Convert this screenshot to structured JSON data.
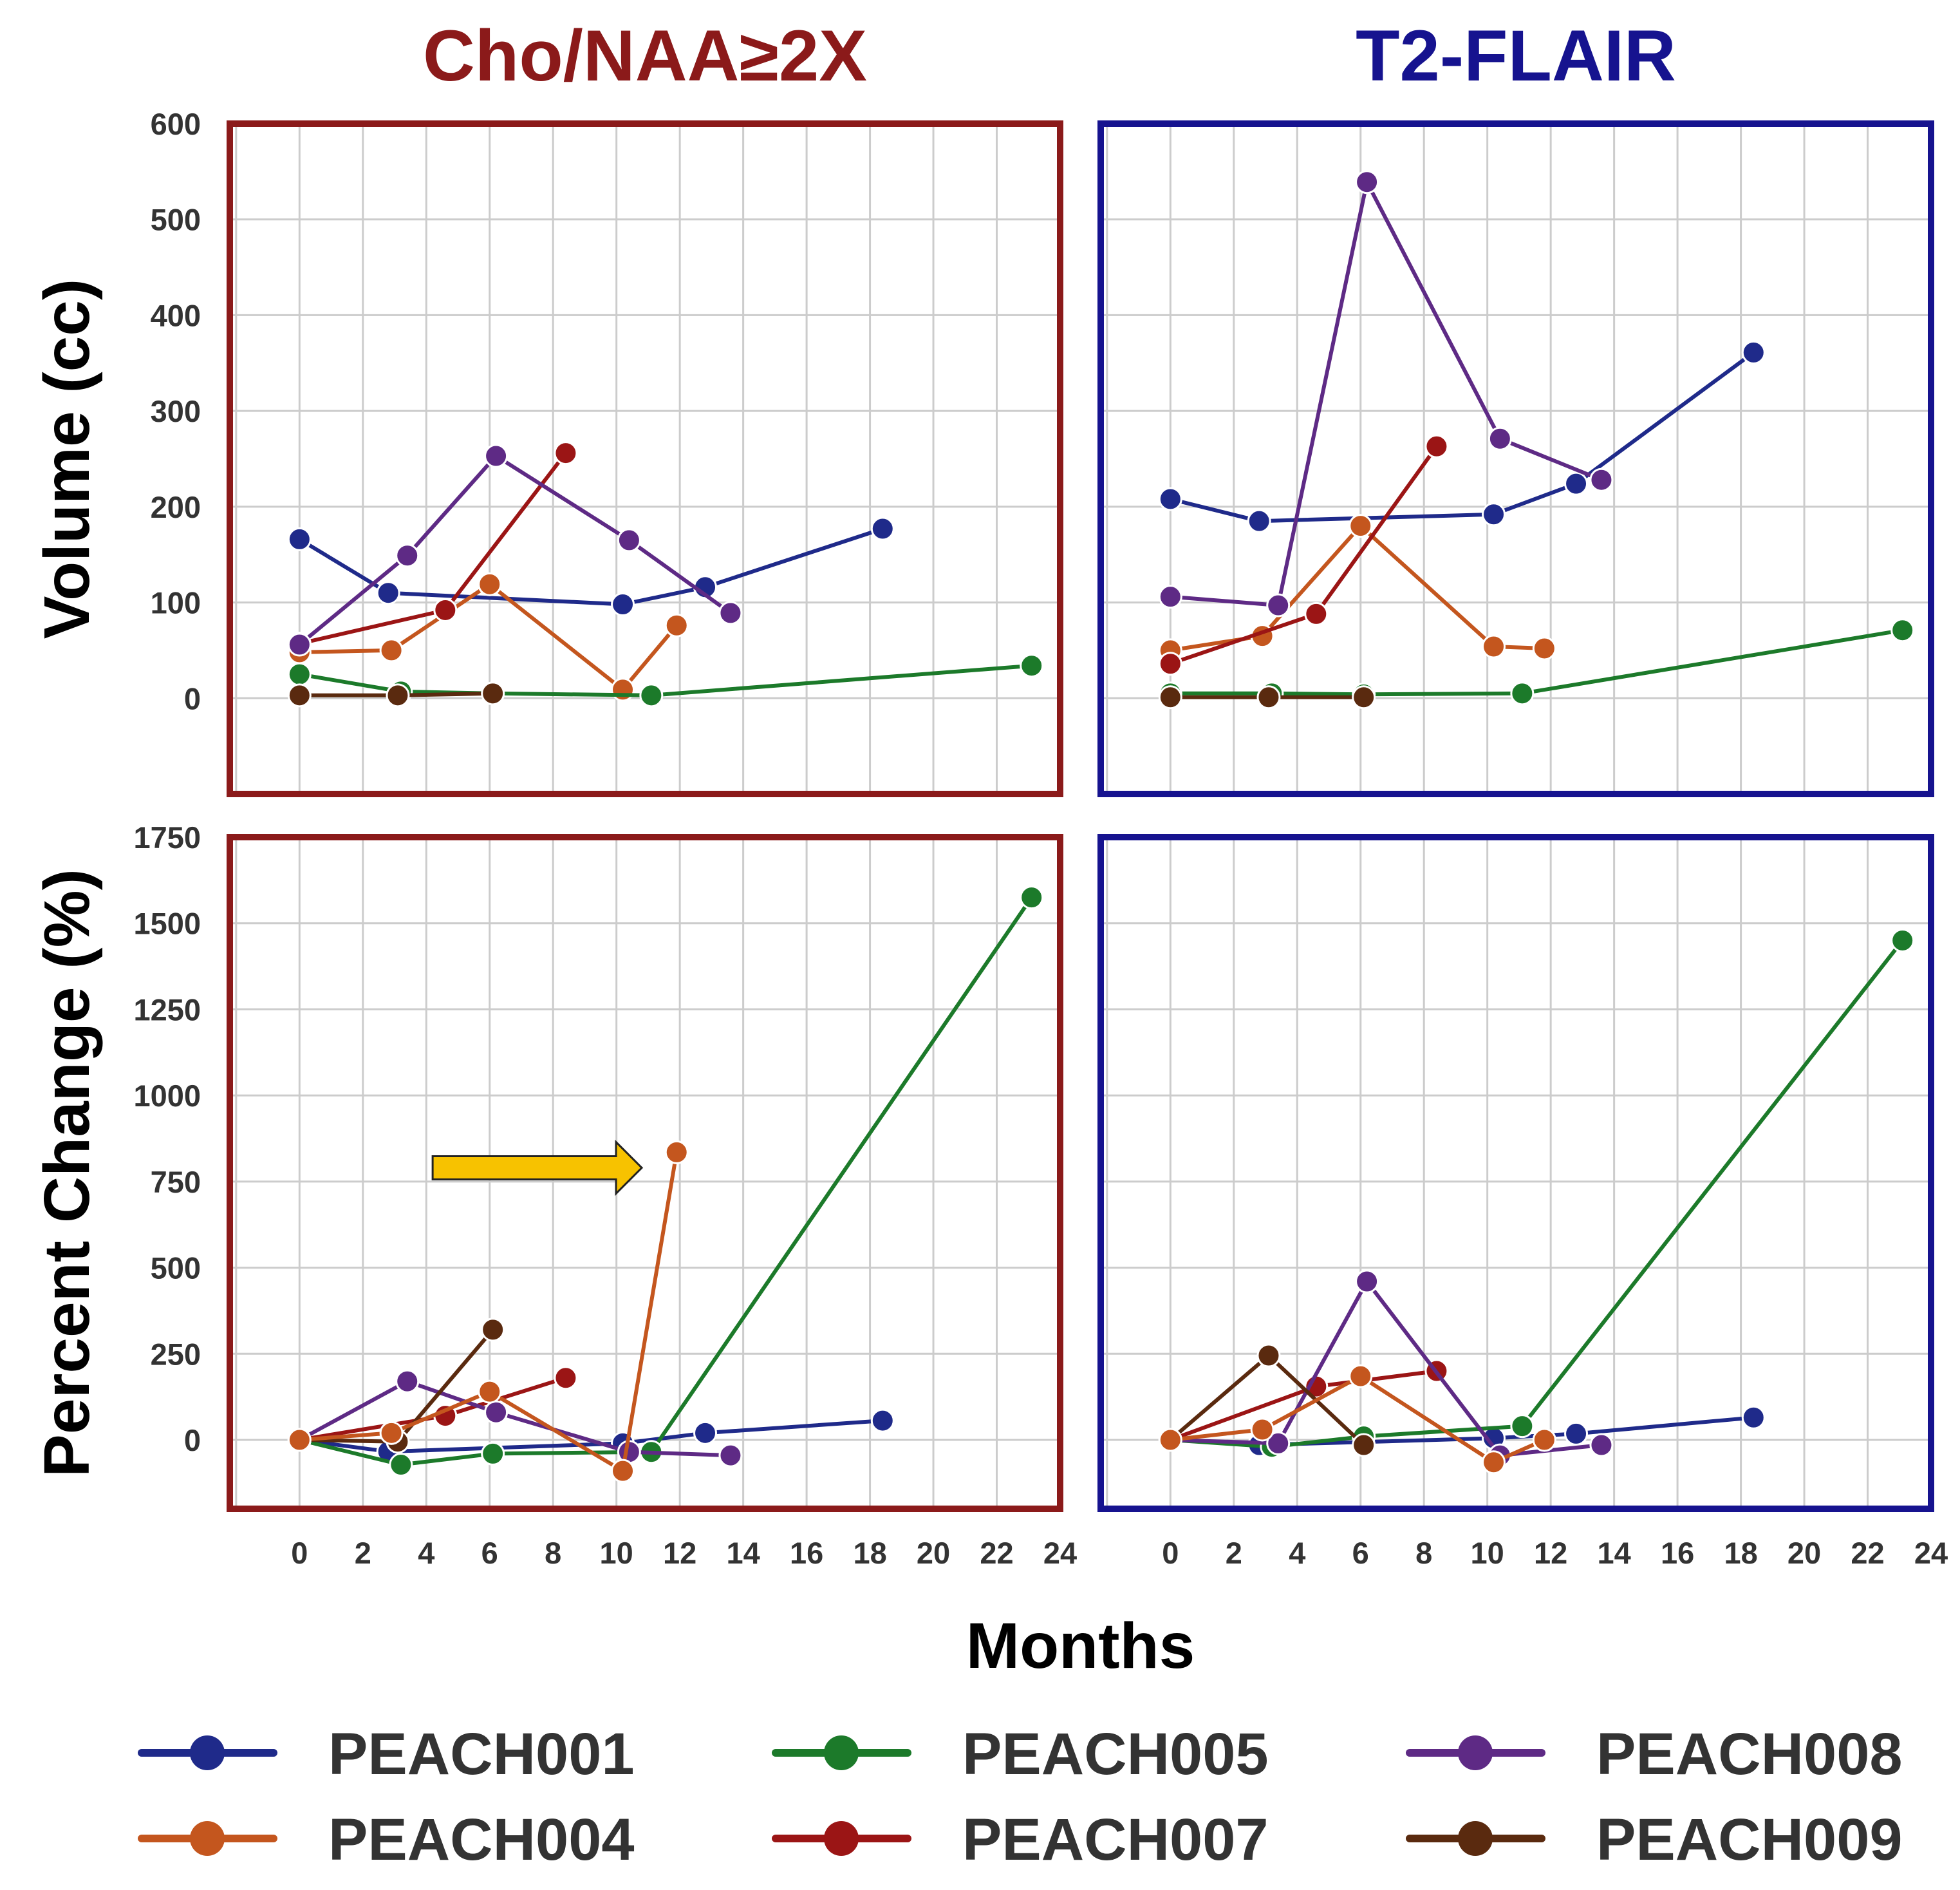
{
  "chart_data": {
    "type": "line",
    "figure": {
      "columns": [
        {
          "title": "Cho/NAA≥2X",
          "color": "#8b1a1a"
        },
        {
          "title": "T2-FLAIR",
          "color": "#16138f"
        }
      ],
      "xlabel": "Months",
      "x_ticks": [
        "0",
        "2",
        "4",
        "6",
        "8",
        "10",
        "12",
        "14",
        "16",
        "18",
        "20",
        "22",
        "24"
      ],
      "xlim": [
        -2.2,
        24
      ],
      "grid": true,
      "legend_placement": "bottom",
      "legend": [
        {
          "label": "PEACH001",
          "color": "#1f2a8a"
        },
        {
          "label": "PEACH005",
          "color": "#1c7a2a"
        },
        {
          "label": "PEACH008",
          "color": "#5e2a85"
        },
        {
          "label": "PEACH004",
          "color": "#c4561e"
        },
        {
          "label": "PEACH007",
          "color": "#9b1515"
        },
        {
          "label": "PEACH009",
          "color": "#5a2a0f"
        }
      ]
    },
    "panels": [
      {
        "id": "volume-cho",
        "ylabel": "Volume (cc)",
        "ylim": [
          -100,
          600
        ],
        "y_ticks": [
          "0",
          "100",
          "200",
          "300",
          "400",
          "500",
          "600"
        ],
        "y_tick_values": [
          0,
          100,
          200,
          300,
          400,
          500,
          600
        ],
        "series": [
          {
            "name": "PEACH001",
            "color": "#1f2a8a",
            "x": [
              0,
              2.8,
              10.2,
              12.8,
              18.4
            ],
            "y": [
              166,
              110,
              98,
              116,
              177
            ]
          },
          {
            "name": "PEACH004",
            "color": "#c4561e",
            "x": [
              0,
              2.9,
              6.0,
              10.2,
              11.9
            ],
            "y": [
              48,
              50,
              119,
              9,
              76
            ]
          },
          {
            "name": "PEACH005",
            "color": "#1c7a2a",
            "x": [
              0,
              3.2,
              6.1,
              11.1,
              23.1
            ],
            "y": [
              25,
              7,
              5,
              3,
              34
            ]
          },
          {
            "name": "PEACH007",
            "color": "#9b1515",
            "x": [
              0,
              4.6,
              8.4
            ],
            "y": [
              57,
              92,
              256
            ]
          },
          {
            "name": "PEACH008",
            "color": "#5e2a85",
            "x": [
              0,
              3.4,
              6.2,
              10.4,
              13.6
            ],
            "y": [
              56,
              149,
              253,
              165,
              89
            ]
          },
          {
            "name": "PEACH009",
            "color": "#5a2a0f",
            "x": [
              0,
              3.1,
              6.1
            ],
            "y": [
              3,
              3,
              5
            ]
          }
        ]
      },
      {
        "id": "volume-flair",
        "ylim": [
          -100,
          600
        ],
        "y_tick_values": [
          0,
          100,
          200,
          300,
          400,
          500,
          600
        ],
        "series": [
          {
            "name": "PEACH001",
            "color": "#1f2a8a",
            "x": [
              0,
              2.8,
              10.2,
              12.8,
              18.4
            ],
            "y": [
              208,
              185,
              192,
              224,
              361
            ]
          },
          {
            "name": "PEACH004",
            "color": "#c4561e",
            "x": [
              0,
              2.9,
              6.0,
              10.2,
              11.8
            ],
            "y": [
              50,
              65,
              180,
              54,
              52
            ]
          },
          {
            "name": "PEACH005",
            "color": "#1c7a2a",
            "x": [
              0,
              3.2,
              6.1,
              11.1,
              23.1
            ],
            "y": [
              5,
              5,
              4,
              5,
              71
            ]
          },
          {
            "name": "PEACH007",
            "color": "#9b1515",
            "x": [
              0,
              4.6,
              8.4
            ],
            "y": [
              36,
              88,
              263
            ]
          },
          {
            "name": "PEACH008",
            "color": "#5e2a85",
            "x": [
              0,
              3.4,
              6.2,
              10.4,
              13.6
            ],
            "y": [
              106,
              97,
              539,
              271,
              228
            ]
          },
          {
            "name": "PEACH009",
            "color": "#5a2a0f",
            "x": [
              0,
              3.1,
              6.1
            ],
            "y": [
              1,
              1,
              1
            ]
          }
        ]
      },
      {
        "id": "percent-cho",
        "ylabel": "Percent Change (%)",
        "ylim": [
          -200,
          1750
        ],
        "y_ticks": [
          "0",
          "250",
          "500",
          "750",
          "1000",
          "1250",
          "1500",
          "1750"
        ],
        "y_tick_values": [
          0,
          250,
          500,
          750,
          1000,
          1250,
          1500,
          1750
        ],
        "series": [
          {
            "name": "PEACH001",
            "color": "#1f2a8a",
            "x": [
              0,
              2.8,
              10.2,
              12.8,
              18.4
            ],
            "y": [
              0,
              -34,
              -10,
              20,
              56
            ]
          },
          {
            "name": "PEACH005",
            "color": "#1c7a2a",
            "x": [
              0,
              3.2,
              6.1,
              11.1,
              23.1
            ],
            "y": [
              0,
              -72,
              -40,
              -35,
              1575
            ]
          },
          {
            "name": "PEACH007",
            "color": "#9b1515",
            "x": [
              0,
              4.6,
              8.4
            ],
            "y": [
              0,
              70,
              180
            ]
          },
          {
            "name": "PEACH008",
            "color": "#5e2a85",
            "x": [
              0,
              3.4,
              6.2,
              10.4,
              13.6
            ],
            "y": [
              0,
              170,
              80,
              -35,
              -45
            ]
          },
          {
            "name": "PEACH009",
            "color": "#5a2a0f",
            "x": [
              0,
              3.1,
              6.1
            ],
            "y": [
              0,
              -5,
              320
            ]
          },
          {
            "name": "PEACH004",
            "color": "#c4561e",
            "x": [
              0,
              2.9,
              6.0,
              10.2,
              11.9
            ],
            "y": [
              0,
              20,
              140,
              -90,
              835
            ]
          }
        ],
        "annotation": {
          "type": "arrow",
          "color": "#f7c200",
          "x_from": 4.2,
          "x_to": 10.8,
          "y": 790
        }
      },
      {
        "id": "percent-flair",
        "ylim": [
          -200,
          1750
        ],
        "y_tick_values": [
          0,
          250,
          500,
          750,
          1000,
          1250,
          1500,
          1750
        ],
        "series": [
          {
            "name": "PEACH001",
            "color": "#1f2a8a",
            "x": [
              0,
              2.8,
              10.2,
              12.8,
              18.4
            ],
            "y": [
              0,
              -15,
              5,
              18,
              65
            ]
          },
          {
            "name": "PEACH005",
            "color": "#1c7a2a",
            "x": [
              0,
              3.2,
              6.1,
              11.1,
              23.1
            ],
            "y": [
              0,
              -20,
              10,
              40,
              1450
            ]
          },
          {
            "name": "PEACH007",
            "color": "#9b1515",
            "x": [
              0,
              4.6,
              8.4
            ],
            "y": [
              0,
              155,
              200
            ]
          },
          {
            "name": "PEACH008",
            "color": "#5e2a85",
            "x": [
              0,
              3.4,
              6.2,
              10.4,
              13.6
            ],
            "y": [
              0,
              -10,
              460,
              -45,
              -15
            ]
          },
          {
            "name": "PEACH009",
            "color": "#5a2a0f",
            "x": [
              0,
              3.1,
              6.1
            ],
            "y": [
              0,
              245,
              -15
            ]
          },
          {
            "name": "PEACH004",
            "color": "#c4561e",
            "x": [
              0,
              2.9,
              6.0,
              10.2,
              11.8
            ],
            "y": [
              0,
              30,
              185,
              -65,
              0
            ]
          }
        ]
      }
    ]
  }
}
